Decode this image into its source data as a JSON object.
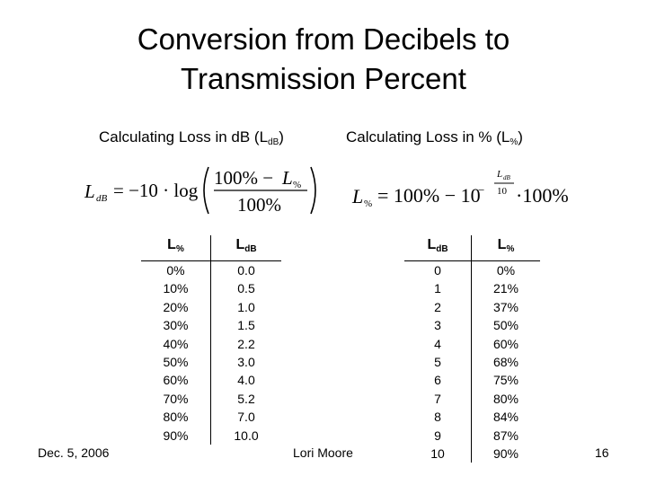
{
  "title_line1": "Conversion from Decibels to",
  "title_line2": "Transmission Percent",
  "left": {
    "heading": "Calculating Loss in dB (L",
    "heading_sub": "dB",
    "heading_end": ")",
    "headers": [
      "L",
      "L"
    ],
    "header_subs": [
      "%",
      "dB"
    ],
    "rows": [
      [
        "0%",
        "0.0"
      ],
      [
        "10%",
        "0.5"
      ],
      [
        "20%",
        "1.0"
      ],
      [
        "30%",
        "1.5"
      ],
      [
        "40%",
        "2.2"
      ],
      [
        "50%",
        "3.0"
      ],
      [
        "60%",
        "4.0"
      ],
      [
        "70%",
        "5.2"
      ],
      [
        "80%",
        "7.0"
      ],
      [
        "90%",
        "10.0"
      ]
    ]
  },
  "right": {
    "heading": "Calculating Loss in % (L",
    "heading_sub": "%",
    "heading_end": ")",
    "headers": [
      "L",
      "L"
    ],
    "header_subs": [
      "dB",
      "%"
    ],
    "rows": [
      [
        "0",
        "0%"
      ],
      [
        "1",
        "21%"
      ],
      [
        "2",
        "37%"
      ],
      [
        "3",
        "50%"
      ],
      [
        "4",
        "60%"
      ],
      [
        "5",
        "68%"
      ],
      [
        "6",
        "75%"
      ],
      [
        "7",
        "80%"
      ],
      [
        "8",
        "84%"
      ],
      [
        "9",
        "87%"
      ],
      [
        "10",
        "90%"
      ]
    ]
  },
  "footer": {
    "date": "Dec. 5, 2006",
    "author": "Lori Moore",
    "page": "16"
  }
}
